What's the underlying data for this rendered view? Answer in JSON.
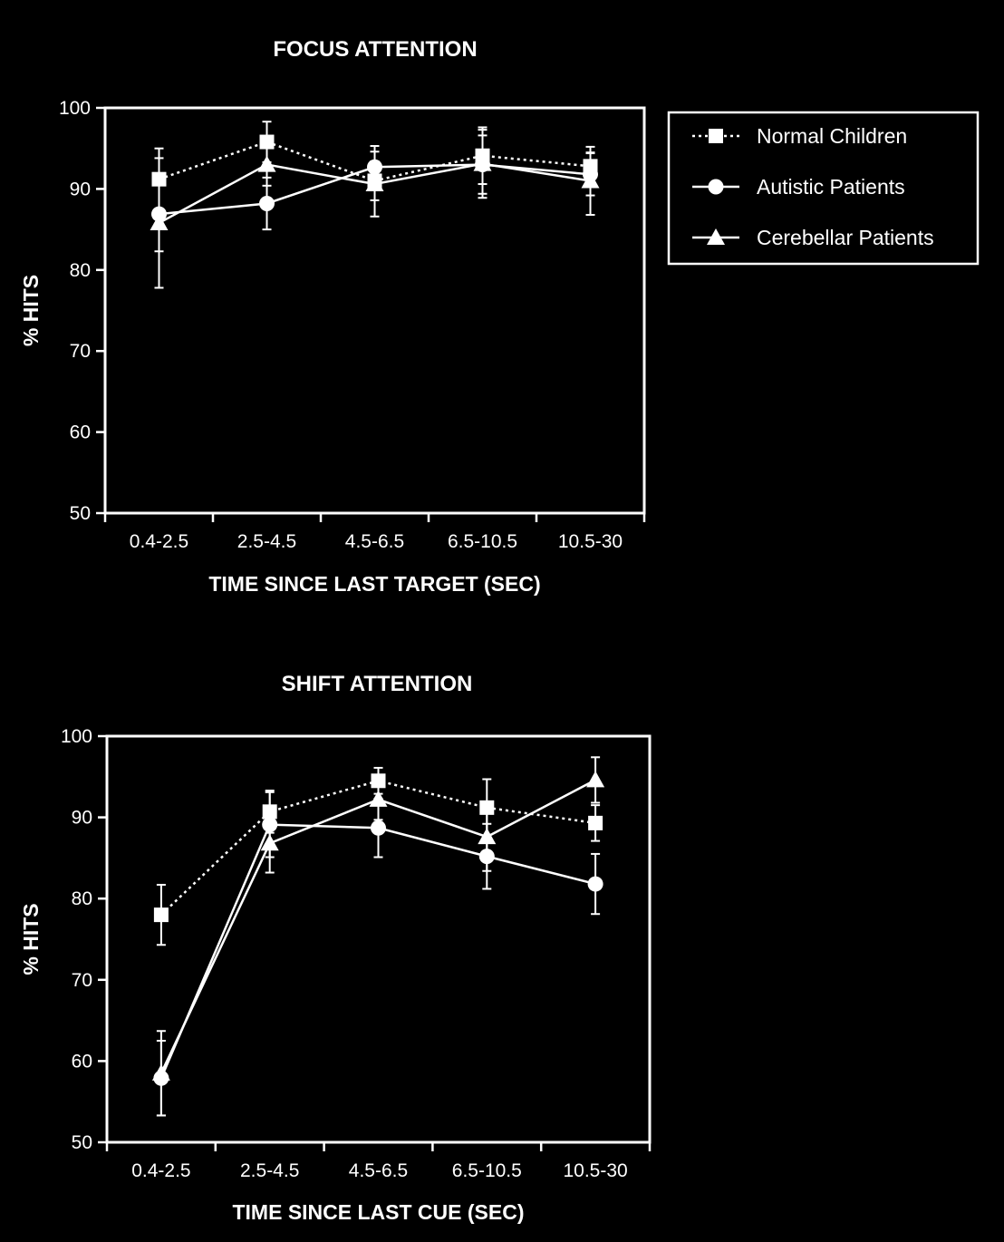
{
  "chart_data": [
    {
      "type": "line",
      "title": "FOCUS  ATTENTION",
      "xlabel": "TIME SINCE LAST TARGET (SEC)",
      "ylabel": "% HITS",
      "categories": [
        "0.4-2.5",
        "2.5-4.5",
        "4.5-6.5",
        "6.5-10.5",
        "10.5-30"
      ],
      "ylim": [
        50,
        100
      ],
      "yticks": [
        50,
        60,
        70,
        80,
        90,
        100
      ],
      "grid": false,
      "legend_position": "right",
      "series": [
        {
          "name": "Normal Children",
          "marker": "square",
          "line": "dotted",
          "values": [
            91.2,
            95.8,
            91.0,
            94.1,
            92.8
          ],
          "error": [
            3.8,
            2.5,
            2.4,
            3.5,
            1.7
          ]
        },
        {
          "name": "Autistic Patients",
          "marker": "circle",
          "line": "solid",
          "values": [
            86.9,
            88.2,
            92.7,
            93.0,
            91.8
          ],
          "error": [
            4.6,
            3.2,
            2.6,
            3.6,
            2.6
          ]
        },
        {
          "name": "Cerebellar Patients",
          "marker": "triangle",
          "line": "solid",
          "values": [
            85.8,
            93.0,
            90.6,
            93.1,
            91.0
          ],
          "error": [
            8.0,
            2.6,
            4.0,
            4.2,
            4.2
          ]
        }
      ]
    },
    {
      "type": "line",
      "title": "SHIFT  ATTENTION",
      "xlabel": "TIME SINCE LAST CUE (SEC)",
      "ylabel": "% HITS",
      "categories": [
        "0.4-2.5",
        "2.5-4.5",
        "4.5-6.5",
        "6.5-10.5",
        "10.5-30"
      ],
      "ylim": [
        50,
        100
      ],
      "yticks": [
        50,
        60,
        70,
        80,
        90,
        100
      ],
      "grid": false,
      "series": [
        {
          "name": "Normal Children",
          "marker": "square",
          "line": "dotted",
          "values": [
            78.0,
            90.7,
            94.5,
            91.2,
            89.3
          ],
          "error": [
            3.7,
            2.6,
            1.6,
            3.5,
            2.2
          ]
        },
        {
          "name": "Autistic Patients",
          "marker": "circle",
          "line": "solid",
          "values": [
            57.9,
            89.1,
            88.7,
            85.2,
            81.8
          ],
          "error": [
            4.6,
            4.0,
            3.6,
            4.0,
            3.7
          ]
        },
        {
          "name": "Cerebellar Patients",
          "marker": "triangle",
          "line": "solid",
          "values": [
            58.5,
            86.8,
            92.2,
            87.6,
            94.6
          ],
          "error": [
            5.2,
            3.6,
            2.5,
            4.2,
            2.8
          ]
        }
      ]
    }
  ],
  "legend": {
    "items": [
      {
        "label": "Normal Children",
        "marker": "square",
        "line": "dotted"
      },
      {
        "label": "Autistic Patients",
        "marker": "circle",
        "line": "solid"
      },
      {
        "label": "Cerebellar Patients",
        "marker": "triangle",
        "line": "solid"
      }
    ]
  },
  "colors": {
    "background": "#000000",
    "foreground": "#ffffff"
  }
}
